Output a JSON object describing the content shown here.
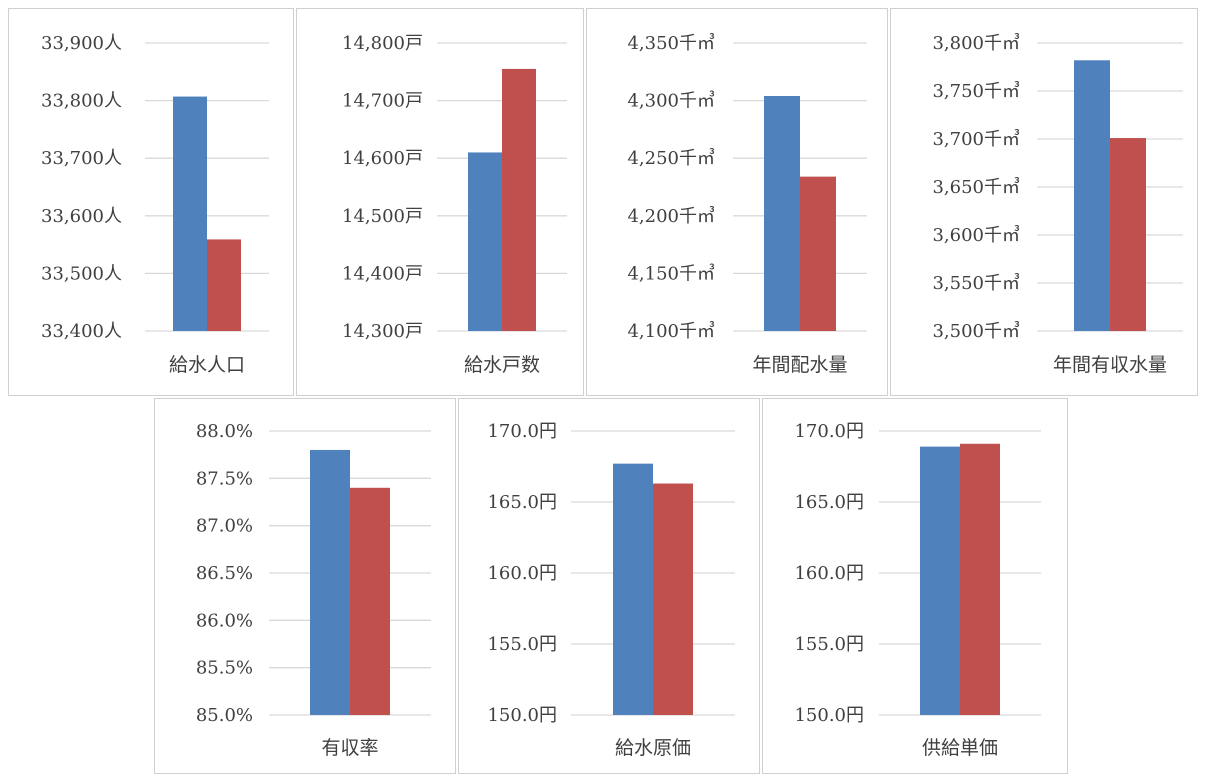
{
  "colors": {
    "series_1": "#4f81bd",
    "series_2": "#c0504d",
    "grid": "#d9d9d9"
  },
  "chart_data": [
    {
      "type": "bar",
      "categories": [
        "給水人口"
      ],
      "series": [
        {
          "values": [
            33807
          ]
        },
        {
          "values": [
            33559
          ]
        }
      ],
      "ylim": [
        33400,
        33900
      ],
      "step": 100,
      "unit": "人",
      "decimals": 0,
      "ticks": [
        "33,400人",
        "33,500人",
        "33,600人",
        "33,700人",
        "33,800人",
        "33,900人"
      ],
      "grid": true
    },
    {
      "type": "bar",
      "categories": [
        "給水戸数"
      ],
      "series": [
        {
          "values": [
            14610
          ]
        },
        {
          "values": [
            14755
          ]
        }
      ],
      "ylim": [
        14300,
        14800
      ],
      "step": 100,
      "unit": "戸",
      "decimals": 0,
      "ticks": [
        "14,300戸",
        "14,400戸",
        "14,500戸",
        "14,600戸",
        "14,700戸",
        "14,800戸"
      ],
      "grid": true
    },
    {
      "type": "bar",
      "categories": [
        "年間配水量"
      ],
      "series": [
        {
          "values": [
            4304
          ]
        },
        {
          "values": [
            4234
          ]
        }
      ],
      "ylim": [
        4100,
        4350
      ],
      "step": 50,
      "unit": "千㎥",
      "decimals": 0,
      "ticks": [
        "4,100千㎥",
        "4,150千㎥",
        "4,200千㎥",
        "4,250千㎥",
        "4,300千㎥",
        "4,350千㎥"
      ],
      "grid": true
    },
    {
      "type": "bar",
      "categories": [
        "年間有収水量"
      ],
      "series": [
        {
          "values": [
            3782
          ]
        },
        {
          "values": [
            3701
          ]
        }
      ],
      "ylim": [
        3500,
        3800
      ],
      "step": 50,
      "unit": "千㎥",
      "decimals": 0,
      "ticks": [
        "3,500千㎥",
        "3,550千㎥",
        "3,600千㎥",
        "3,650千㎥",
        "3,700千㎥",
        "3,750千㎥",
        "3,800千㎥"
      ],
      "grid": true
    },
    {
      "type": "bar",
      "categories": [
        "有収率"
      ],
      "series": [
        {
          "values": [
            87.8
          ]
        },
        {
          "values": [
            87.4
          ]
        }
      ],
      "ylim": [
        85.0,
        88.0
      ],
      "step": 0.5,
      "unit": "%",
      "decimals": 1,
      "ticks": [
        "85.0%",
        "85.5%",
        "86.0%",
        "86.5%",
        "87.0%",
        "87.5%",
        "88.0%"
      ],
      "grid": true
    },
    {
      "type": "bar",
      "categories": [
        "給水原価"
      ],
      "series": [
        {
          "values": [
            167.7
          ]
        },
        {
          "values": [
            166.3
          ]
        }
      ],
      "ylim": [
        150.0,
        170.0
      ],
      "step": 5,
      "unit": "円",
      "decimals": 1,
      "ticks": [
        "150.0円",
        "155.0円",
        "160.0円",
        "165.0円",
        "170.0円"
      ],
      "grid": true
    },
    {
      "type": "bar",
      "categories": [
        "供給単価"
      ],
      "series": [
        {
          "values": [
            168.9
          ]
        },
        {
          "values": [
            169.1
          ]
        }
      ],
      "ylim": [
        150.0,
        170.0
      ],
      "step": 5,
      "unit": "円",
      "decimals": 1,
      "ticks": [
        "150.0円",
        "155.0円",
        "160.0円",
        "165.0円",
        "170.0円"
      ],
      "grid": true
    }
  ]
}
